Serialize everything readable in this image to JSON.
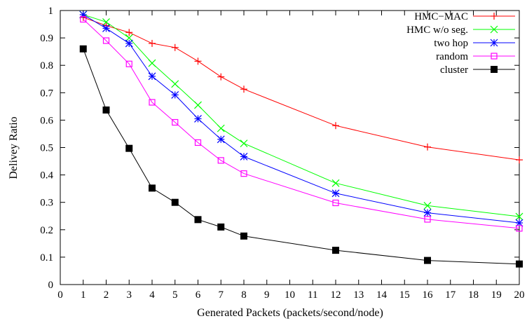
{
  "chart_data": {
    "type": "line",
    "title": "",
    "xlabel": "Generated Packets (packets/second/node)",
    "ylabel": "Delivey Ratio",
    "xlim": [
      0,
      20
    ],
    "ylim": [
      0,
      1
    ],
    "x_ticks": [
      "0",
      "1",
      "2",
      "3",
      "4",
      "5",
      "6",
      "7",
      "8",
      "9",
      "10",
      "11",
      "12",
      "13",
      "14",
      "15",
      "16",
      "17",
      "18",
      "19",
      "20"
    ],
    "y_ticks": [
      "0",
      "0.1",
      "0.2",
      "0.3",
      "0.4",
      "0.5",
      "0.6",
      "0.7",
      "0.8",
      "0.9",
      "1"
    ],
    "grid": false,
    "legend_position": "top-right",
    "series": [
      {
        "name": "HMC−MAC",
        "color": "#ff0000",
        "marker": "plus",
        "x": [
          1,
          2,
          3,
          4,
          5,
          6,
          7,
          8,
          12,
          16,
          20
        ],
        "y": [
          0.975,
          0.945,
          0.92,
          0.88,
          0.865,
          0.815,
          0.758,
          0.713,
          0.58,
          0.502,
          0.455
        ]
      },
      {
        "name": "HMC w/o seg.",
        "color": "#00ff00",
        "marker": "x",
        "x": [
          1,
          2,
          3,
          4,
          5,
          6,
          7,
          8,
          12,
          16,
          20
        ],
        "y": [
          0.985,
          0.958,
          0.9,
          0.808,
          0.732,
          0.655,
          0.57,
          0.515,
          0.37,
          0.288,
          0.248
        ]
      },
      {
        "name": "two hop",
        "color": "#0000ff",
        "marker": "star",
        "x": [
          1,
          2,
          3,
          4,
          5,
          6,
          7,
          8,
          12,
          16,
          20
        ],
        "y": [
          0.985,
          0.935,
          0.88,
          0.76,
          0.692,
          0.605,
          0.53,
          0.467,
          0.333,
          0.262,
          0.225
        ]
      },
      {
        "name": "random",
        "color": "#ff00ff",
        "marker": "open-square",
        "x": [
          1,
          2,
          3,
          4,
          5,
          6,
          7,
          8,
          12,
          16,
          20
        ],
        "y": [
          0.968,
          0.89,
          0.805,
          0.665,
          0.592,
          0.518,
          0.453,
          0.405,
          0.298,
          0.238,
          0.205
        ]
      },
      {
        "name": "cluster",
        "color": "#000000",
        "marker": "filled-square",
        "x": [
          1,
          2,
          3,
          4,
          5,
          6,
          7,
          8,
          12,
          16,
          20
        ],
        "y": [
          0.86,
          0.637,
          0.497,
          0.352,
          0.3,
          0.237,
          0.21,
          0.177,
          0.125,
          0.088,
          0.075
        ]
      }
    ]
  }
}
